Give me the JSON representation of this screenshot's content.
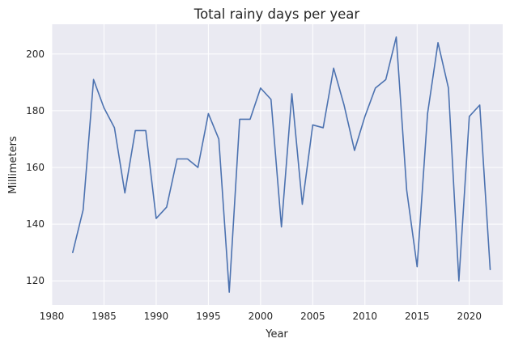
{
  "chart_data": {
    "type": "line",
    "title": "Total rainy days per year",
    "xlabel": "Year",
    "ylabel": "Millimeters",
    "xlim": [
      1980,
      2023.2
    ],
    "ylim": [
      111.5,
      210.5
    ],
    "xticks": [
      1980,
      1985,
      1990,
      1995,
      2000,
      2005,
      2010,
      2015,
      2020
    ],
    "yticks": [
      120,
      140,
      160,
      180,
      200
    ],
    "grid": true,
    "line_color": "#4c72b0",
    "background_color": "#eaeaf2",
    "series": [
      {
        "x": [
          1982,
          1983,
          1984,
          1985,
          1986,
          1987,
          1988,
          1989,
          1990,
          1991,
          1992,
          1993,
          1994,
          1995,
          1996,
          1997,
          1998,
          1999,
          2000,
          2001,
          2002,
          2003,
          2004,
          2005,
          2006,
          2007,
          2008,
          2009,
          2010,
          2011,
          2012,
          2013,
          2014,
          2015,
          2016,
          2017,
          2018,
          2019,
          2020,
          2021,
          2022
        ],
        "values": [
          130,
          145,
          191,
          181,
          174,
          151,
          173,
          173,
          142,
          146,
          163,
          163,
          160,
          179,
          170,
          116,
          177,
          177,
          188,
          184,
          139,
          186,
          147,
          175,
          174,
          195,
          182,
          166,
          178,
          188,
          191,
          206,
          152,
          125,
          179,
          204,
          188,
          120,
          178,
          182,
          124
        ]
      }
    ]
  }
}
